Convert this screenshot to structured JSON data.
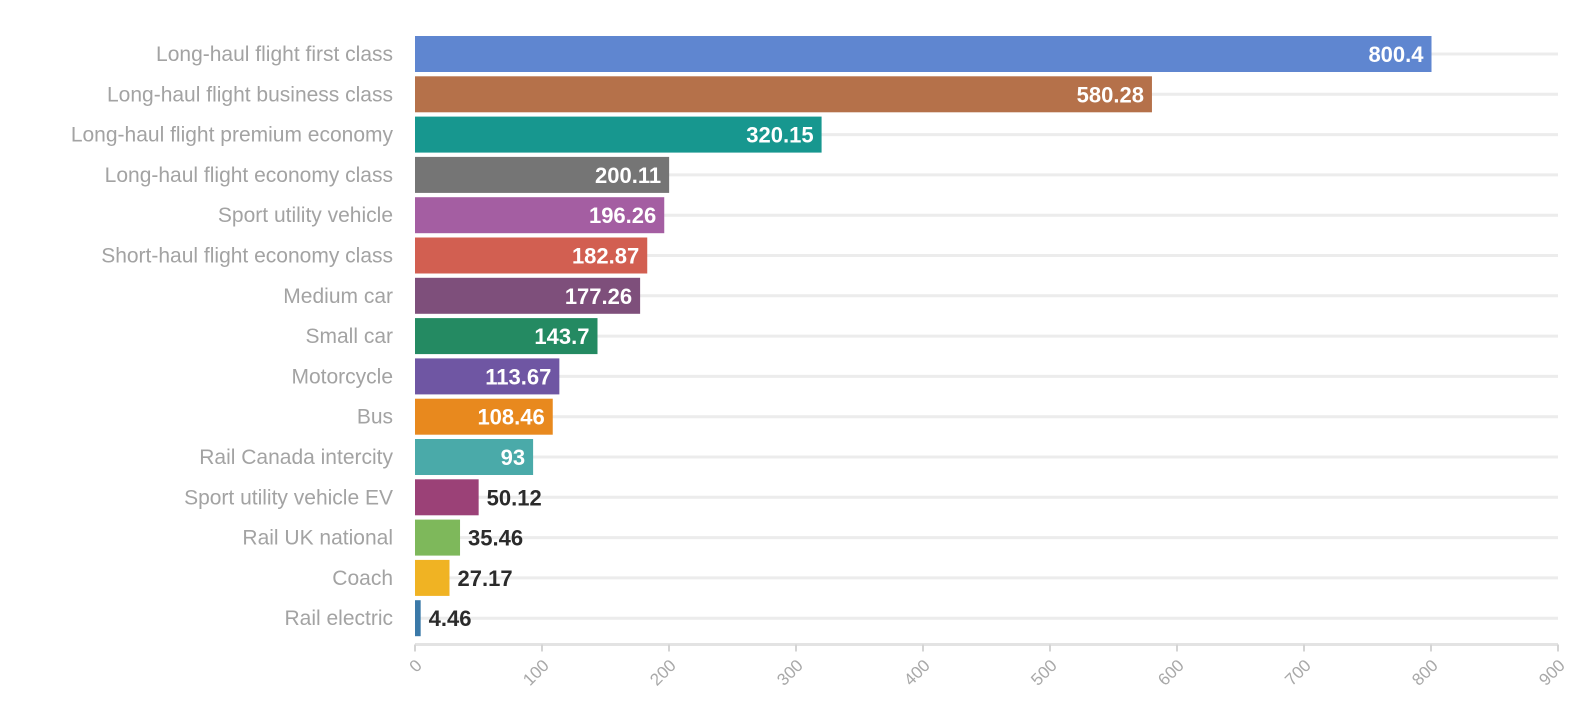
{
  "chart_data": {
    "type": "bar",
    "orientation": "horizontal",
    "categories": [
      "Long-haul flight first class",
      "Long-haul flight business class",
      "Long-haul flight premium economy",
      "Long-haul flight economy class",
      "Sport utility vehicle",
      "Short-haul flight economy class",
      "Medium car",
      "Small car",
      "Motorcycle",
      "Bus",
      "Rail Canada intercity",
      "Sport utility vehicle EV",
      "Rail UK national",
      "Coach",
      "Rail electric"
    ],
    "values": [
      800.4,
      580.28,
      320.15,
      200.11,
      196.26,
      182.87,
      177.26,
      143.7,
      113.67,
      108.46,
      93,
      50.12,
      35.46,
      27.17,
      4.46
    ],
    "value_labels": [
      "800.4",
      "580.28",
      "320.15",
      "200.11",
      "196.26",
      "182.87",
      "177.26",
      "143.7",
      "113.67",
      "108.46",
      "93",
      "50.12",
      "35.46",
      "27.17",
      "4.46"
    ],
    "colors": [
      "#5f86d0",
      "#b5714a",
      "#17978f",
      "#757575",
      "#a45ea2",
      "#d25f51",
      "#7e4f7b",
      "#248a62",
      "#6f56a3",
      "#e8891e",
      "#4aaaa9",
      "#9b4177",
      "#7eb85b",
      "#f0b323",
      "#3b79a8"
    ],
    "xlim": [
      0,
      900
    ],
    "xticks": [
      0,
      100,
      200,
      300,
      400,
      500,
      600,
      700,
      800,
      900
    ],
    "xtick_labels": [
      "0",
      "100",
      "200",
      "300",
      "400",
      "500",
      "600",
      "700",
      "800",
      "900"
    ],
    "title": "",
    "xlabel": "",
    "ylabel": "",
    "grid": true,
    "legend": "none"
  }
}
